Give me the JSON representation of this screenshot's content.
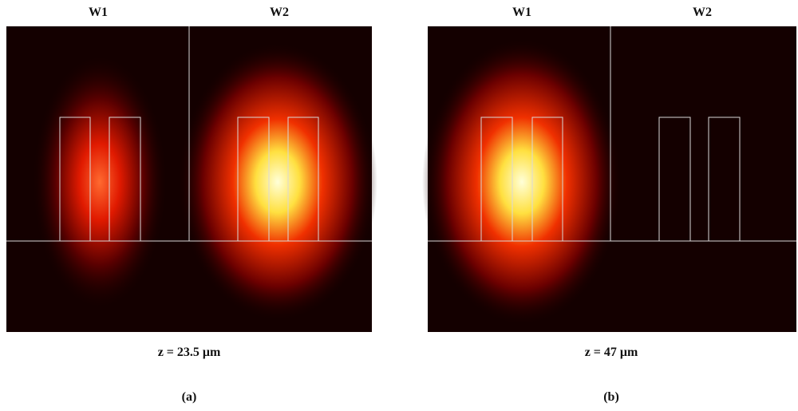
{
  "panels": [
    {
      "labels": [
        "W1",
        "W2"
      ],
      "caption": "z = 23.5 μm",
      "tag": "(a)"
    },
    {
      "labels": [
        "W1",
        "W2"
      ],
      "caption": "z = 47 μm",
      "tag": "(b)"
    }
  ]
}
